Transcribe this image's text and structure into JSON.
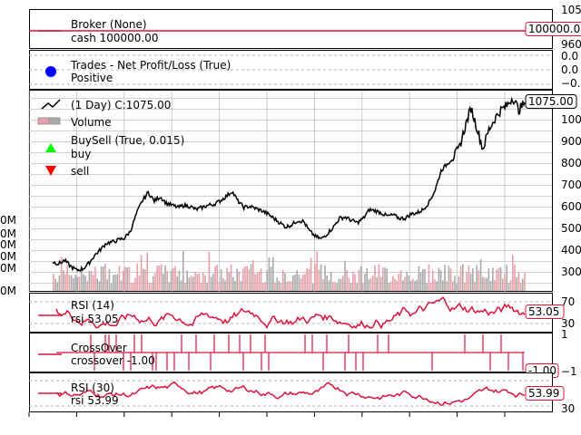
{
  "colors": {
    "line_red": "#dc143c",
    "price": "#000000",
    "volume_up": "#e8a0a8",
    "volume_down": "#a9a9a9",
    "grid": "#b0b0b0",
    "buy": "#00ff00",
    "sell": "#ff0000",
    "trades_dot": "#0000ff"
  },
  "chart_data": [
    {
      "type": "line",
      "panel": "broker",
      "legend": [
        "Broker (None)",
        "cash 100000.00"
      ],
      "value_label": "100000.0",
      "y_tick_labels": [
        "105",
        "960"
      ],
      "value": 100000.0
    },
    {
      "type": "scatter",
      "panel": "trades",
      "legend": [
        "Trades - Net Profit/Loss (True)",
        "Positive"
      ],
      "y_tick_labels": [
        "0.0",
        "0.0",
        "−0.",
        "−0."
      ],
      "grid": true
    },
    {
      "type": "line",
      "panel": "price",
      "legend": [
        " (1 Day) C:1075.00",
        "Volume",
        "BuySell (True, 0.015)",
        "buy",
        "sell"
      ],
      "value_label": "1075.00",
      "y_tick_labels": [
        "1000",
        "900",
        "800",
        "700",
        "600",
        "500",
        "400",
        "300"
      ],
      "volume_tick_labels": [
        "0M",
        "0M",
        "0M",
        "0M",
        "0M",
        "0M"
      ],
      "ylim": [
        200,
        1130
      ],
      "close": [
        [
          0,
          338
        ],
        [
          1,
          330
        ],
        [
          2,
          345
        ],
        [
          3,
          318
        ],
        [
          4,
          300
        ],
        [
          5,
          305
        ],
        [
          6,
          330
        ],
        [
          7,
          368
        ],
        [
          8,
          395
        ],
        [
          9,
          425
        ],
        [
          10,
          430
        ],
        [
          11,
          440
        ],
        [
          12,
          448
        ],
        [
          13,
          480
        ],
        [
          14,
          560
        ],
        [
          15,
          620
        ],
        [
          16,
          660
        ],
        [
          17,
          620
        ],
        [
          18,
          640
        ],
        [
          19,
          610
        ],
        [
          20,
          600
        ],
        [
          21,
          590
        ],
        [
          22,
          600
        ],
        [
          23,
          595
        ],
        [
          24,
          580
        ],
        [
          25,
          590
        ],
        [
          26,
          600
        ],
        [
          27,
          605
        ],
        [
          28,
          620
        ],
        [
          29,
          640
        ],
        [
          30,
          665
        ],
        [
          31,
          620
        ],
        [
          32,
          590
        ],
        [
          33,
          595
        ],
        [
          34,
          585
        ],
        [
          35,
          575
        ],
        [
          36,
          560
        ],
        [
          37,
          540
        ],
        [
          38,
          520
        ],
        [
          39,
          500
        ],
        [
          40,
          510
        ],
        [
          41,
          530
        ],
        [
          42,
          525
        ],
        [
          43,
          480
        ],
        [
          44,
          455
        ],
        [
          45,
          445
        ],
        [
          46,
          470
        ],
        [
          47,
          500
        ],
        [
          48,
          540
        ],
        [
          49,
          545
        ],
        [
          50,
          530
        ],
        [
          51,
          520
        ],
        [
          52,
          540
        ],
        [
          53,
          580
        ],
        [
          54,
          575
        ],
        [
          55,
          565
        ],
        [
          56,
          550
        ],
        [
          57,
          555
        ],
        [
          58,
          540
        ],
        [
          59,
          540
        ],
        [
          60,
          560
        ],
        [
          61,
          565
        ],
        [
          62,
          580
        ],
        [
          63,
          615
        ],
        [
          64,
          670
        ],
        [
          65,
          760
        ],
        [
          66,
          790
        ],
        [
          67,
          820
        ],
        [
          68,
          860
        ],
        [
          69,
          960
        ],
        [
          70,
          1050
        ],
        [
          71,
          960
        ],
        [
          72,
          860
        ],
        [
          73,
          950
        ],
        [
          74,
          1000
        ],
        [
          75,
          1040
        ],
        [
          76,
          1060
        ],
        [
          77,
          1100
        ],
        [
          78,
          1040
        ],
        [
          79,
          1075
        ]
      ],
      "volume_up_ratio": 0.5
    },
    {
      "type": "line",
      "panel": "rsi14",
      "legend": [
        "RSI (14)",
        "rsi 53.05"
      ],
      "value_label": "53.05",
      "y_tick_labels": [
        "70",
        "30"
      ],
      "ylim": [
        20,
        80
      ],
      "ref_lines": [
        70,
        30
      ]
    },
    {
      "type": "line",
      "panel": "crossover",
      "legend": [
        "CrossOver",
        "crossover -1.00"
      ],
      "value_label": "-1.00",
      "y_tick_labels": [
        "1",
        "−1"
      ],
      "ylim": [
        -1,
        1
      ]
    },
    {
      "type": "line",
      "panel": "rsi30",
      "legend": [
        "RSI (30)",
        "rsi 53.99"
      ],
      "value_label": "53.99",
      "y_tick_labels": [
        "30"
      ],
      "ylim": [
        20,
        80
      ],
      "ref_lines": [
        70,
        30
      ]
    }
  ]
}
